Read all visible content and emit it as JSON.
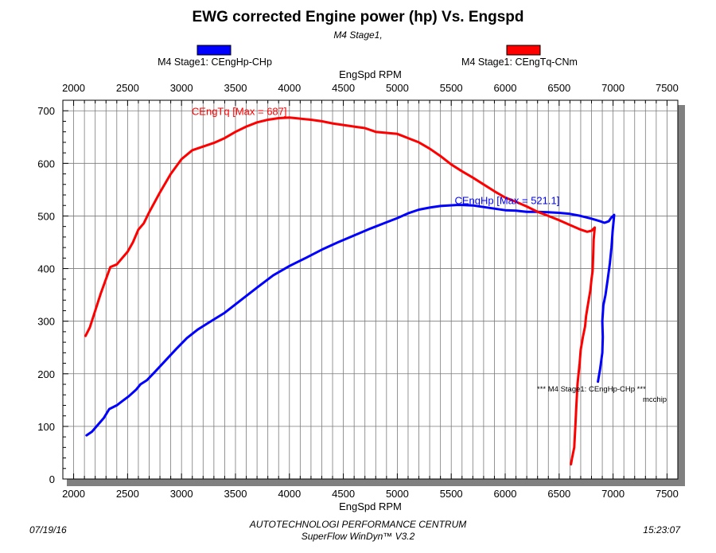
{
  "header": {
    "title": "EWG corrected Engine power (hp) Vs. Engspd",
    "subtitle": "M4 Stage1,"
  },
  "legend": {
    "placement": "top",
    "items": [
      {
        "label": "M4 Stage1: CEngHp-CHp",
        "color": "#0000ff"
      },
      {
        "label": "M4 Stage1: CEngTq-CNm",
        "color": "#ff0000"
      }
    ]
  },
  "footer": {
    "date": "07/19/16",
    "company": "AUTOTECHNOLOGI PERFORMANCE CENTRUM",
    "software": "SuperFlow WinDyn™ V3.2",
    "time": "15:23:07"
  },
  "chart_data": {
    "type": "line",
    "title": "EWG corrected Engine power (hp) Vs. Engspd",
    "subtitle": "M4 Stage1,",
    "xlabel": "EngSpd RPM",
    "ylabel": "",
    "xlim": [
      1900,
      7600
    ],
    "ylim": [
      0,
      720
    ],
    "xticks": [
      2000,
      2500,
      3000,
      3500,
      4000,
      4500,
      5000,
      5500,
      6000,
      6500,
      7000,
      7500
    ],
    "yticks": [
      0,
      100,
      200,
      300,
      400,
      500,
      600,
      700
    ],
    "grid": true,
    "annotations": [
      {
        "text": "CEngTq [Max = 687]",
        "x": 4200,
        "y": 695,
        "color": "#ff0000"
      },
      {
        "text": "CEngHp [Max = 521.1]",
        "x": 5900,
        "y": 526,
        "color": "#0000ff"
      }
    ],
    "note": {
      "lines": [
        "*** M4 Stage1: CEngHp-CHp        ***",
        "mcchip"
      ]
    },
    "series": [
      {
        "name": "M4 Stage1: CEngHp-CHp",
        "color": "#0000ff",
        "points": [
          [
            2120,
            83
          ],
          [
            2170,
            90
          ],
          [
            2220,
            102
          ],
          [
            2280,
            116
          ],
          [
            2330,
            133
          ],
          [
            2400,
            140
          ],
          [
            2450,
            148
          ],
          [
            2510,
            157
          ],
          [
            2580,
            170
          ],
          [
            2620,
            180
          ],
          [
            2680,
            188
          ],
          [
            2750,
            203
          ],
          [
            2850,
            225
          ],
          [
            2950,
            247
          ],
          [
            3050,
            268
          ],
          [
            3150,
            284
          ],
          [
            3250,
            297
          ],
          [
            3400,
            316
          ],
          [
            3550,
            340
          ],
          [
            3700,
            364
          ],
          [
            3850,
            387
          ],
          [
            4000,
            405
          ],
          [
            4150,
            420
          ],
          [
            4300,
            436
          ],
          [
            4450,
            450
          ],
          [
            4600,
            463
          ],
          [
            4750,
            476
          ],
          [
            4900,
            488
          ],
          [
            5000,
            496
          ],
          [
            5100,
            505
          ],
          [
            5200,
            512
          ],
          [
            5300,
            516
          ],
          [
            5400,
            519
          ],
          [
            5550,
            521
          ],
          [
            5600,
            521
          ],
          [
            5700,
            520
          ],
          [
            5800,
            517
          ],
          [
            5900,
            514
          ],
          [
            6000,
            511
          ],
          [
            6100,
            510
          ],
          [
            6200,
            508
          ],
          [
            6300,
            508
          ],
          [
            6400,
            507
          ],
          [
            6500,
            506
          ],
          [
            6600,
            504
          ],
          [
            6700,
            500
          ],
          [
            6800,
            495
          ],
          [
            6880,
            490
          ],
          [
            6920,
            487
          ],
          [
            6960,
            490
          ],
          [
            6980,
            496
          ],
          [
            7010,
            502
          ],
          [
            6995,
            470
          ],
          [
            6985,
            440
          ],
          [
            6970,
            410
          ],
          [
            6950,
            380
          ],
          [
            6930,
            350
          ],
          [
            6910,
            330
          ],
          [
            6900,
            300
          ],
          [
            6905,
            270
          ],
          [
            6900,
            240
          ],
          [
            6880,
            210
          ],
          [
            6860,
            185
          ]
        ]
      },
      {
        "name": "M4 Stage1: CEngTq-CNm",
        "color": "#ff0000",
        "points": [
          [
            2110,
            272
          ],
          [
            2150,
            288
          ],
          [
            2200,
            320
          ],
          [
            2250,
            352
          ],
          [
            2300,
            380
          ],
          [
            2340,
            403
          ],
          [
            2400,
            408
          ],
          [
            2450,
            420
          ],
          [
            2500,
            432
          ],
          [
            2550,
            450
          ],
          [
            2600,
            474
          ],
          [
            2650,
            486
          ],
          [
            2700,
            507
          ],
          [
            2800,
            545
          ],
          [
            2900,
            580
          ],
          [
            3000,
            608
          ],
          [
            3100,
            625
          ],
          [
            3200,
            632
          ],
          [
            3300,
            639
          ],
          [
            3400,
            648
          ],
          [
            3500,
            660
          ],
          [
            3600,
            670
          ],
          [
            3700,
            678
          ],
          [
            3800,
            683
          ],
          [
            3900,
            686
          ],
          [
            4000,
            687
          ],
          [
            4100,
            685
          ],
          [
            4200,
            683
          ],
          [
            4300,
            680
          ],
          [
            4400,
            676
          ],
          [
            4500,
            673
          ],
          [
            4600,
            670
          ],
          [
            4700,
            667
          ],
          [
            4800,
            660
          ],
          [
            4900,
            658
          ],
          [
            5000,
            656
          ],
          [
            5100,
            648
          ],
          [
            5200,
            640
          ],
          [
            5300,
            628
          ],
          [
            5400,
            614
          ],
          [
            5500,
            598
          ],
          [
            5600,
            585
          ],
          [
            5700,
            573
          ],
          [
            5800,
            560
          ],
          [
            5900,
            547
          ],
          [
            6000,
            535
          ],
          [
            6100,
            527
          ],
          [
            6200,
            518
          ],
          [
            6300,
            508
          ],
          [
            6400,
            500
          ],
          [
            6500,
            492
          ],
          [
            6600,
            483
          ],
          [
            6700,
            474
          ],
          [
            6760,
            470
          ],
          [
            6800,
            472
          ],
          [
            6830,
            478
          ],
          [
            6820,
            455
          ],
          [
            6815,
            420
          ],
          [
            6810,
            395
          ],
          [
            6800,
            380
          ],
          [
            6790,
            360
          ],
          [
            6770,
            335
          ],
          [
            6750,
            310
          ],
          [
            6740,
            290
          ],
          [
            6720,
            270
          ],
          [
            6700,
            245
          ],
          [
            6690,
            220
          ],
          [
            6680,
            200
          ],
          [
            6670,
            180
          ],
          [
            6660,
            140
          ],
          [
            6650,
            100
          ],
          [
            6640,
            60
          ],
          [
            6620,
            40
          ],
          [
            6610,
            28
          ]
        ]
      }
    ]
  }
}
